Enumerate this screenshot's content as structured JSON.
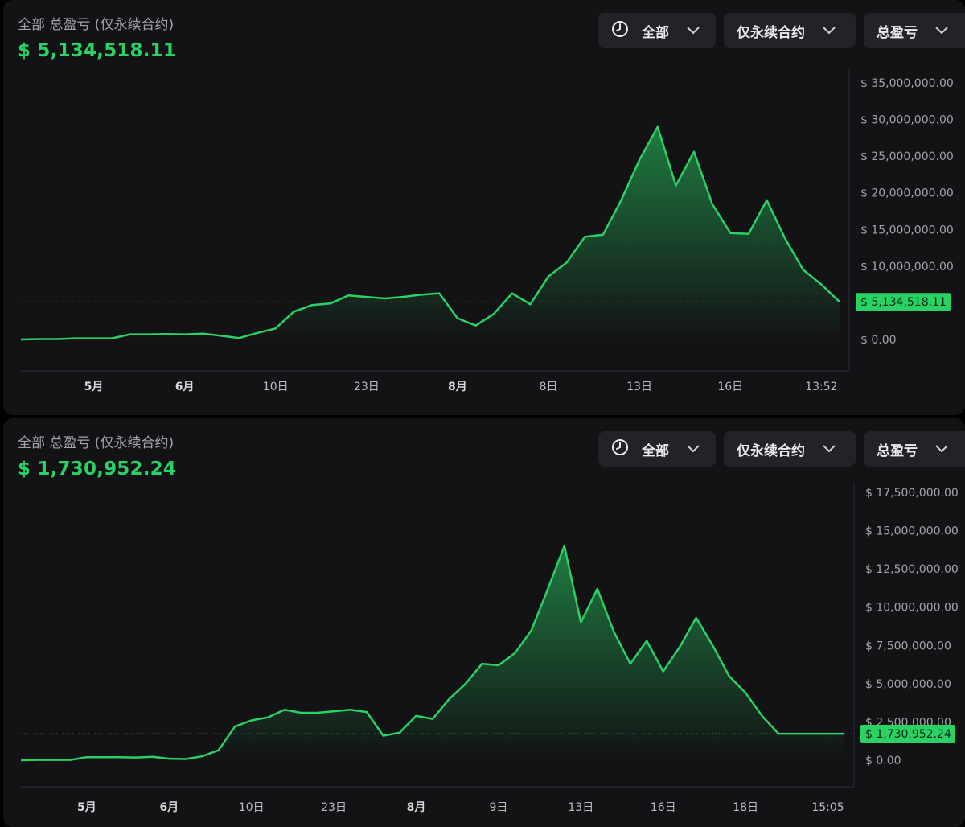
{
  "colors": {
    "line": "#2ad164",
    "accent": "#2ad164",
    "panel_bg": "#131315",
    "control_bg": "#222327"
  },
  "panels": [
    {
      "label": "全部 总盈亏 (仅永续合约)",
      "value": "$ 5,134,518.11",
      "controls": {
        "time_icon": "clock-icon",
        "time_label": "全部",
        "scope_label": "仅永续合约",
        "metric_label": "总盈亏",
        "chevron_icon": "chevron-down-icon"
      }
    },
    {
      "label": "全部 总盈亏 (仅永续合约)",
      "value": "$ 1,730,952.24",
      "controls": {
        "time_icon": "clock-icon",
        "time_label": "全部",
        "scope_label": "仅永续合约",
        "metric_label": "总盈亏",
        "chevron_icon": "chevron-down-icon"
      }
    }
  ],
  "chart_data": [
    {
      "type": "area",
      "title": "",
      "ylim": [
        -1000000,
        37500000
      ],
      "y_ticks": [
        0,
        5000000,
        10000000,
        15000000,
        20000000,
        25000000,
        30000000,
        35000000
      ],
      "y_tick_labels": [
        "$ 0.00",
        "$ 5,000,000.00",
        "$ 10,000,000.00",
        "$ 15,000,000.00",
        "$ 20,000,000.00",
        "$ 25,000,000.00",
        "$ 30,000,000.00",
        "$ 35,000,000.00"
      ],
      "x_tick_labels": [
        {
          "label": "5月",
          "x": 4,
          "bold": true
        },
        {
          "label": "6月",
          "x": 9,
          "bold": true
        },
        {
          "label": "10日",
          "x": 14,
          "bold": false
        },
        {
          "label": "23日",
          "x": 19,
          "bold": false
        },
        {
          "label": "8月",
          "x": 24,
          "bold": true
        },
        {
          "label": "8日",
          "x": 29,
          "bold": false
        },
        {
          "label": "13日",
          "x": 34,
          "bold": false
        },
        {
          "label": "16日",
          "x": 39,
          "bold": false
        },
        {
          "label": "13:52",
          "x": 44,
          "bold": false
        }
      ],
      "x_max": 45,
      "x": [
        0,
        1,
        2,
        3,
        4,
        5,
        6,
        7,
        8,
        9,
        10,
        11,
        12,
        13,
        14,
        15,
        16,
        17,
        18,
        19,
        20,
        21,
        22,
        23,
        24,
        25,
        26,
        27,
        28,
        29,
        30,
        31,
        32,
        33,
        34,
        35,
        36,
        37,
        38,
        39,
        40,
        41,
        42,
        43,
        44,
        45
      ],
      "values": [
        0,
        50000,
        50000,
        150000,
        150000,
        150000,
        700000,
        700000,
        750000,
        700000,
        800000,
        500000,
        200000,
        900000,
        1500000,
        3800000,
        4700000,
        4900000,
        6000000,
        5800000,
        5600000,
        5800000,
        6100000,
        6300000,
        2900000,
        1900000,
        3500000,
        6300000,
        4800000,
        8600000,
        10500000,
        14000000,
        14300000,
        19000000,
        24500000,
        29000000,
        21000000,
        25600000,
        18500000,
        14500000,
        14400000,
        19000000,
        13800000,
        9500000,
        7500000,
        5134518.11
      ],
      "last_value_label": "$ 5,134,518.11"
    },
    {
      "type": "area",
      "title": "",
      "ylim": [
        -500000,
        18750000
      ],
      "y_ticks": [
        0,
        2500000,
        5000000,
        7500000,
        10000000,
        12500000,
        15000000,
        17500000
      ],
      "y_tick_labels": [
        "$ 0.00",
        "$ 2,500,000.00",
        "$ 5,000,000.00",
        "$ 7,500,000.00",
        "$ 10,000,000.00",
        "$ 12,500,000.00",
        "$ 15,000,000.00",
        "$ 17,500,000.00"
      ],
      "x_tick_labels": [
        {
          "label": "5月",
          "x": 4,
          "bold": true
        },
        {
          "label": "6月",
          "x": 9,
          "bold": true
        },
        {
          "label": "10日",
          "x": 14,
          "bold": false
        },
        {
          "label": "23日",
          "x": 19,
          "bold": false
        },
        {
          "label": "8月",
          "x": 24,
          "bold": true
        },
        {
          "label": "9日",
          "x": 29,
          "bold": false
        },
        {
          "label": "13日",
          "x": 34,
          "bold": false
        },
        {
          "label": "16日",
          "x": 39,
          "bold": false
        },
        {
          "label": "18日",
          "x": 44,
          "bold": false
        },
        {
          "label": "15:05",
          "x": 49,
          "bold": false
        }
      ],
      "x_max": 50,
      "x": [
        0,
        1,
        2,
        3,
        4,
        5,
        6,
        7,
        8,
        9,
        10,
        11,
        12,
        13,
        14,
        15,
        16,
        17,
        18,
        19,
        20,
        21,
        22,
        23,
        24,
        25,
        26,
        27,
        28,
        29,
        30,
        31,
        32,
        33,
        34,
        35,
        36,
        37,
        38,
        39,
        40,
        41,
        42,
        43,
        44,
        45,
        46,
        47,
        48,
        49,
        50
      ],
      "values": [
        0,
        20000,
        20000,
        20000,
        200000,
        200000,
        200000,
        180000,
        220000,
        100000,
        80000,
        250000,
        650000,
        2200000,
        2600000,
        2800000,
        3300000,
        3100000,
        3100000,
        3200000,
        3300000,
        3150000,
        1600000,
        1800000,
        2900000,
        2700000,
        4000000,
        5000000,
        6300000,
        6200000,
        7000000,
        8500000,
        11200000,
        14000000,
        9000000,
        11200000,
        8400000,
        6300000,
        7800000,
        5800000,
        7400000,
        9300000,
        7500000,
        5500000,
        4400000,
        2900000,
        1730952.24,
        1730952.24,
        1730952.24,
        1730952.24,
        1730952.24
      ],
      "last_value_label": "$ 1,730,952.24"
    }
  ]
}
